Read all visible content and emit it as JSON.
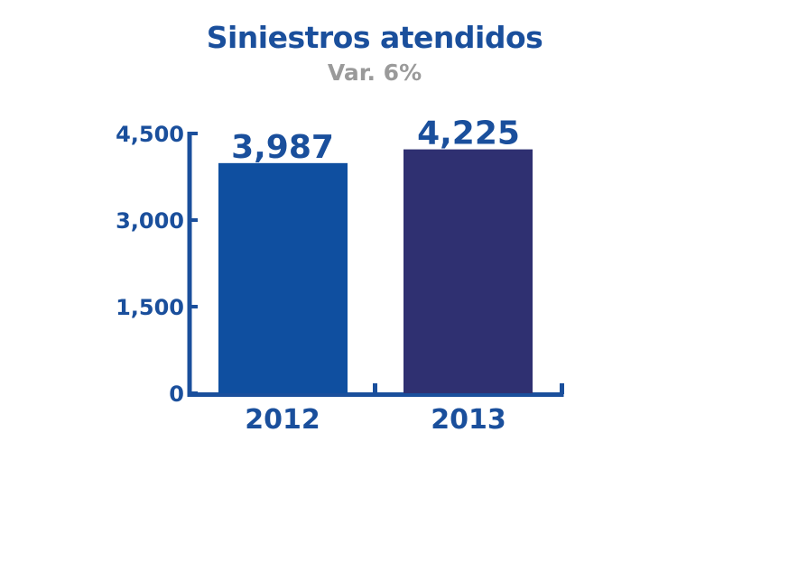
{
  "chart_data": {
    "type": "bar",
    "title": "Siniestros atendidos",
    "subtitle": "Var. 6%",
    "categories": [
      "2012",
      "2013"
    ],
    "values": [
      3987,
      4225
    ],
    "value_labels": [
      "3,987",
      "4,225"
    ],
    "yticks": [
      0,
      1500,
      3000,
      4500
    ],
    "ytick_labels": [
      "0",
      "1,500",
      "3,000",
      "4,500"
    ],
    "ylim": [
      0,
      4500
    ],
    "xlabel": "",
    "ylabel": "",
    "grid": false,
    "legend": "none",
    "colors": [
      "#0f4fa0",
      "#2f3071"
    ],
    "axis_color": "#1a4f9c"
  }
}
